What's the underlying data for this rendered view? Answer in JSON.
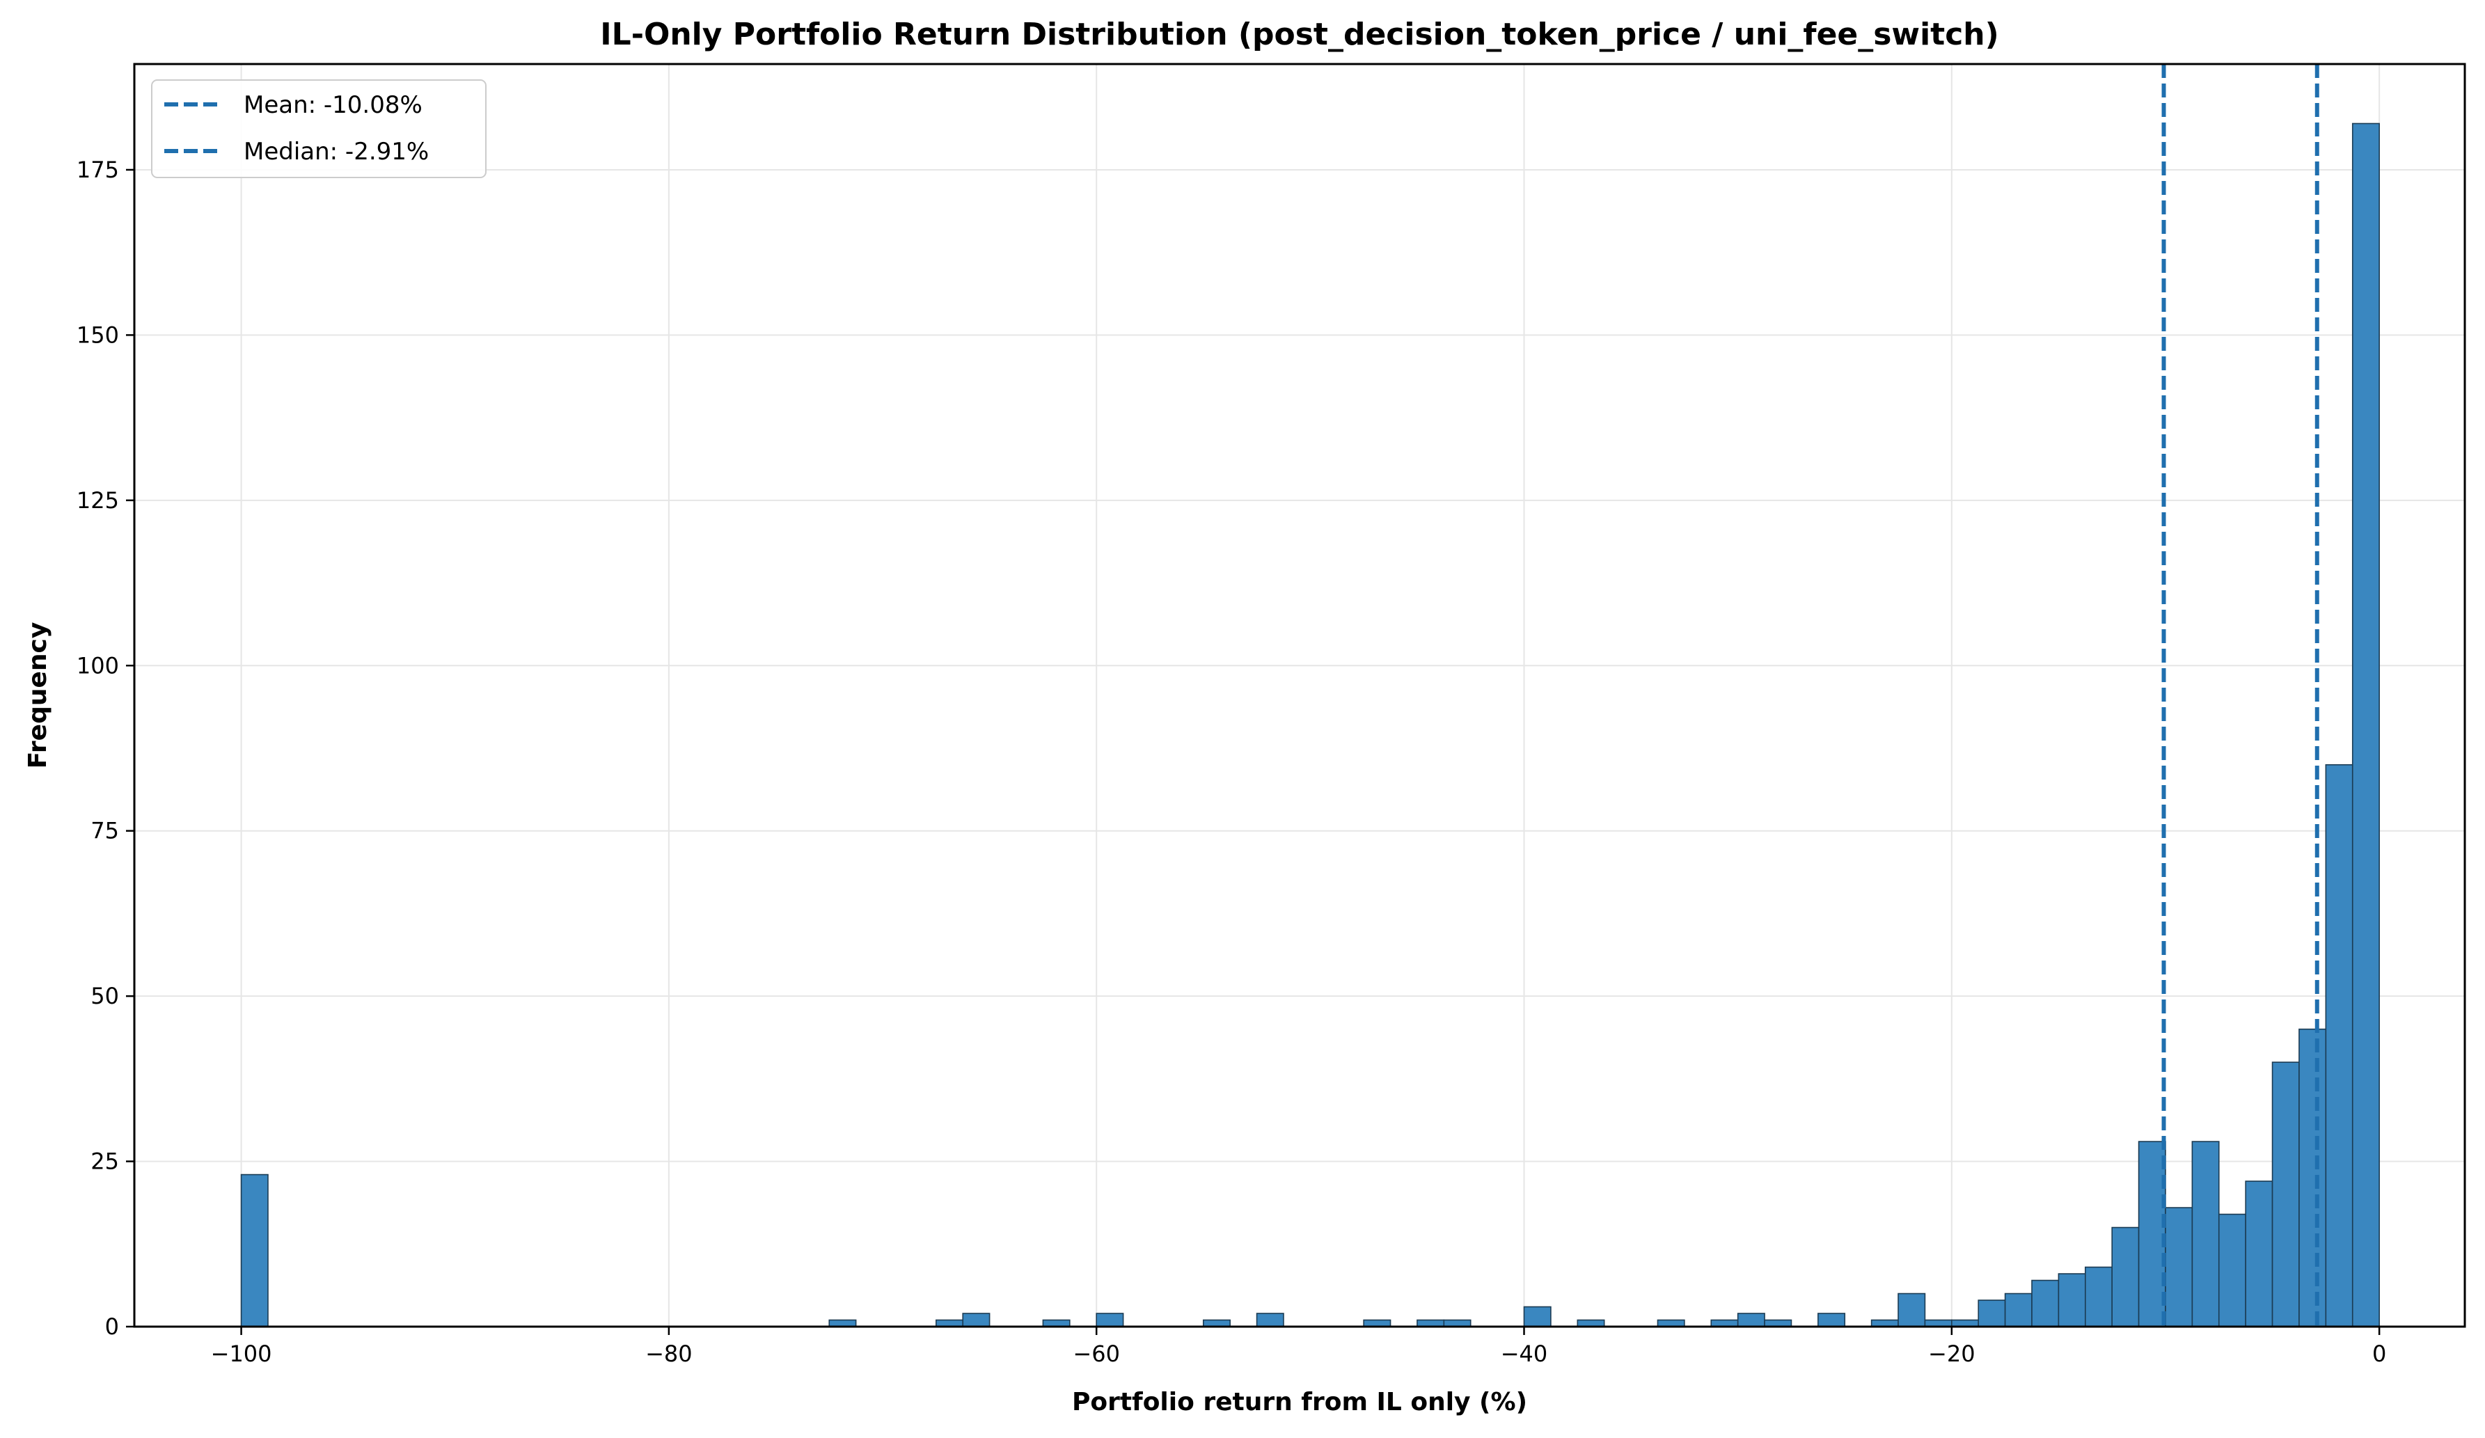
{
  "chart_data": {
    "type": "bar",
    "title": "IL-Only Portfolio Return Distribution (post_decision_token_price / uni_fee_switch)",
    "xlabel": "Portfolio return from IL only (%)",
    "ylabel": "Frequency",
    "xlim": [
      -105,
      4
    ],
    "ylim": [
      0,
      191
    ],
    "x_ticks": [
      -100,
      -80,
      -60,
      -40,
      -20,
      0
    ],
    "x_tick_labels": [
      "−100",
      "−80",
      "−60",
      "−40",
      "−20",
      "0"
    ],
    "y_ticks": [
      0,
      25,
      50,
      75,
      100,
      125,
      150,
      175
    ],
    "y_tick_labels": [
      "0",
      "25",
      "50",
      "75",
      "100",
      "125",
      "150",
      "175"
    ],
    "grid": true,
    "legend_position": "top-left",
    "bin_width": 1.25,
    "bar_color": "#3a87c0",
    "bar_edge_color": "#1b3b53",
    "line_color": "#1f6fae",
    "bins": [
      {
        "left": -100.0,
        "count": 23
      },
      {
        "left": -72.5,
        "count": 1
      },
      {
        "left": -67.5,
        "count": 1
      },
      {
        "left": -66.25,
        "count": 2
      },
      {
        "left": -62.5,
        "count": 1
      },
      {
        "left": -60.0,
        "count": 2
      },
      {
        "left": -55.0,
        "count": 1
      },
      {
        "left": -52.5,
        "count": 2
      },
      {
        "left": -47.5,
        "count": 1
      },
      {
        "left": -45.0,
        "count": 1
      },
      {
        "left": -43.75,
        "count": 1
      },
      {
        "left": -40.0,
        "count": 3
      },
      {
        "left": -37.5,
        "count": 1
      },
      {
        "left": -33.75,
        "count": 1
      },
      {
        "left": -31.25,
        "count": 1
      },
      {
        "left": -30.0,
        "count": 2
      },
      {
        "left": -28.75,
        "count": 1
      },
      {
        "left": -26.25,
        "count": 2
      },
      {
        "left": -23.75,
        "count": 1
      },
      {
        "left": -22.5,
        "count": 5
      },
      {
        "left": -21.25,
        "count": 1
      },
      {
        "left": -20.0,
        "count": 1
      },
      {
        "left": -18.75,
        "count": 4
      },
      {
        "left": -17.5,
        "count": 5
      },
      {
        "left": -16.25,
        "count": 7
      },
      {
        "left": -15.0,
        "count": 8
      },
      {
        "left": -13.75,
        "count": 9
      },
      {
        "left": -12.5,
        "count": 15
      },
      {
        "left": -11.25,
        "count": 28
      },
      {
        "left": -10.0,
        "count": 18
      },
      {
        "left": -8.75,
        "count": 28
      },
      {
        "left": -7.5,
        "count": 17
      },
      {
        "left": -6.25,
        "count": 22
      },
      {
        "left": -5.0,
        "count": 40
      },
      {
        "left": -3.75,
        "count": 45
      },
      {
        "left": -2.5,
        "count": 85
      },
      {
        "left": -1.25,
        "count": 182
      }
    ],
    "reference_lines": [
      {
        "name": "Mean: -10.08%",
        "x": -10.08
      },
      {
        "name": "Median: -2.91%",
        "x": -2.91
      }
    ]
  }
}
